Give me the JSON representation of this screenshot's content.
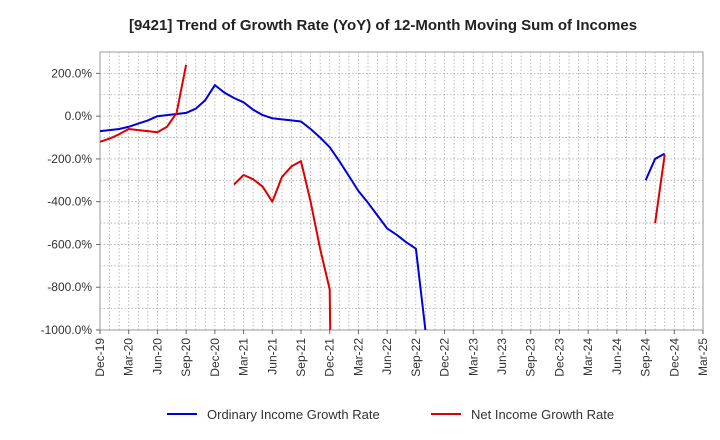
{
  "chart_data": {
    "type": "line",
    "title": "[9421]  Trend of Growth Rate (YoY) of 12-Month Moving Sum of Incomes",
    "xlabel": "",
    "ylabel": "",
    "ylim": [
      -1000,
      300
    ],
    "y_ticks": [
      "200.0%",
      "0.0%",
      "-200.0%",
      "-400.0%",
      "-600.0%",
      "-800.0%",
      "-1000.0%"
    ],
    "y_tick_values": [
      200,
      0,
      -200,
      -400,
      -600,
      -800,
      -1000
    ],
    "x_ticks": [
      "Dec-19",
      "Mar-20",
      "Jun-20",
      "Sep-20",
      "Dec-20",
      "Mar-21",
      "Jun-21",
      "Sep-21",
      "Dec-21",
      "Mar-22",
      "Jun-22",
      "Sep-22",
      "Dec-22",
      "Mar-23",
      "Jun-23",
      "Sep-23",
      "Dec-23",
      "Mar-24",
      "Jun-24",
      "Sep-24",
      "Dec-24",
      "Mar-25"
    ],
    "x_tick_months": [
      0,
      3,
      6,
      9,
      12,
      15,
      18,
      21,
      24,
      27,
      30,
      33,
      36,
      39,
      42,
      45,
      48,
      51,
      54,
      57,
      60,
      63
    ],
    "grid": true,
    "legend_position": "bottom",
    "series": [
      {
        "name": "Ordinary Income Growth Rate",
        "color": "#0000dd",
        "points": [
          [
            0,
            -70
          ],
          [
            1,
            -65
          ],
          [
            2,
            -60
          ],
          [
            3,
            -50
          ],
          [
            4,
            -35
          ],
          [
            5,
            -20
          ],
          [
            6,
            0
          ],
          [
            7,
            5
          ],
          [
            8,
            10
          ],
          [
            9,
            15
          ],
          [
            10,
            35
          ],
          [
            11,
            75
          ],
          [
            12,
            145
          ],
          [
            13,
            110
          ],
          [
            14,
            85
          ],
          [
            15,
            65
          ],
          [
            16,
            30
          ],
          [
            17,
            5
          ],
          [
            18,
            -10
          ],
          [
            19,
            -15
          ],
          [
            20,
            -20
          ],
          [
            21,
            -25
          ],
          [
            22,
            -60
          ],
          [
            23,
            -100
          ],
          [
            24,
            -145
          ],
          [
            25,
            -210
          ],
          [
            26,
            -280
          ],
          [
            27,
            -350
          ],
          [
            28,
            -405
          ],
          [
            29,
            -465
          ],
          [
            30,
            -525
          ],
          [
            31,
            -555
          ],
          [
            32,
            -590
          ],
          [
            33,
            -620
          ],
          [
            34,
            -1000
          ]
        ],
        "points_2": [
          [
            57,
            -300
          ],
          [
            58,
            -200
          ],
          [
            59,
            -175
          ]
        ]
      },
      {
        "name": "Net Income Growth Rate",
        "color": "#dd0000",
        "points": [
          [
            0,
            -120
          ],
          [
            1,
            -105
          ],
          [
            2,
            -85
          ],
          [
            3,
            -60
          ],
          [
            4,
            -65
          ],
          [
            5,
            -70
          ],
          [
            6,
            -75
          ],
          [
            7,
            -50
          ],
          [
            8,
            15
          ],
          [
            9,
            240
          ]
        ],
        "points_2": [
          [
            14,
            -320
          ],
          [
            15,
            -275
          ],
          [
            16,
            -295
          ],
          [
            17,
            -330
          ],
          [
            18,
            -400
          ],
          [
            19,
            -285
          ],
          [
            20,
            -235
          ],
          [
            21,
            -210
          ],
          [
            22,
            -400
          ],
          [
            23,
            -620
          ],
          [
            24,
            -810
          ],
          [
            24.05,
            -1000
          ]
        ],
        "points_3": [
          [
            58,
            -500
          ],
          [
            59,
            -180
          ]
        ]
      }
    ]
  }
}
